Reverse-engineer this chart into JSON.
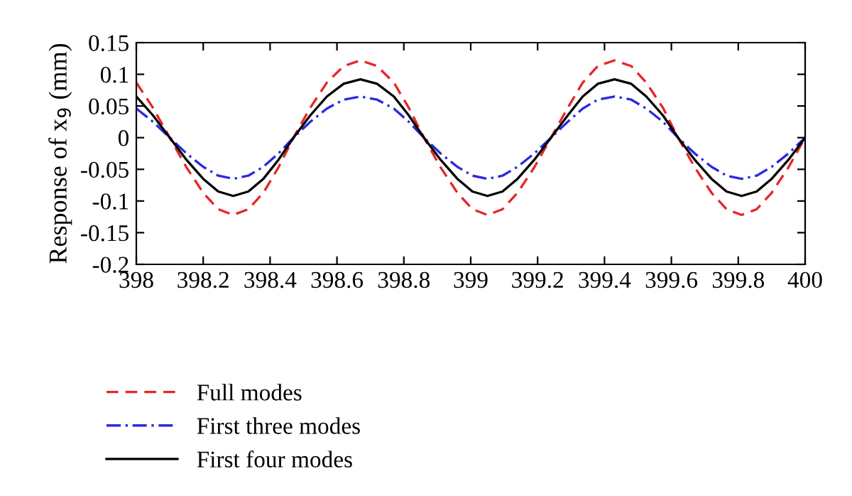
{
  "chart_data": {
    "type": "line",
    "ylabel": "Response of x$_{9}$ (mm)",
    "x": [
      398,
      398.05,
      398.1,
      398.15,
      398.2,
      398.245,
      398.29,
      398.335,
      398.38,
      398.425,
      398.47,
      398.52,
      398.57,
      398.62,
      398.67,
      398.72,
      398.77,
      398.815,
      398.86,
      398.91,
      398.96,
      399.005,
      399.05,
      399.095,
      399.14,
      399.19,
      399.24,
      399.29,
      399.335,
      399.38,
      399.43,
      399.48,
      399.525,
      399.575,
      399.62,
      399.67,
      399.72,
      399.765,
      399.81,
      399.855,
      399.9,
      399.95,
      400
    ],
    "series": [
      {
        "name": "Full modes",
        "color": "#e8262a",
        "line_style": "dashed",
        "values": [
          0.087,
          0.047,
          0,
          -0.047,
          -0.087,
          -0.113,
          -0.122,
          -0.113,
          -0.087,
          -0.047,
          0,
          0.047,
          0.087,
          0.113,
          0.122,
          0.113,
          0.087,
          0.047,
          0,
          -0.047,
          -0.087,
          -0.113,
          -0.122,
          -0.113,
          -0.087,
          -0.047,
          0,
          0.047,
          0.087,
          0.113,
          0.122,
          0.113,
          0.087,
          0.047,
          0,
          -0.047,
          -0.087,
          -0.113,
          -0.122,
          -0.113,
          -0.087,
          -0.047,
          0
        ]
      },
      {
        "name": "First three modes",
        "color": "#2a2ae0",
        "line_style": "dashdot",
        "values": [
          0.046,
          0.025,
          0,
          -0.025,
          -0.046,
          -0.06,
          -0.065,
          -0.06,
          -0.046,
          -0.025,
          0,
          0.025,
          0.046,
          0.06,
          0.065,
          0.06,
          0.046,
          0.025,
          0,
          -0.025,
          -0.046,
          -0.06,
          -0.065,
          -0.06,
          -0.046,
          -0.025,
          0,
          0.025,
          0.046,
          0.06,
          0.065,
          0.06,
          0.046,
          0.025,
          0,
          -0.025,
          -0.046,
          -0.06,
          -0.065,
          -0.06,
          -0.046,
          -0.025,
          0
        ]
      },
      {
        "name": "First four modes",
        "color": "#000000",
        "line_style": "solid",
        "values": [
          0.065,
          0.035,
          0,
          -0.035,
          -0.065,
          -0.085,
          -0.092,
          -0.085,
          -0.065,
          -0.035,
          0,
          0.035,
          0.065,
          0.085,
          0.092,
          0.085,
          0.065,
          0.035,
          0,
          -0.035,
          -0.065,
          -0.085,
          -0.092,
          -0.085,
          -0.065,
          -0.035,
          0,
          0.035,
          0.065,
          0.085,
          0.092,
          0.085,
          0.065,
          0.035,
          0,
          -0.035,
          -0.065,
          -0.085,
          -0.092,
          -0.085,
          -0.065,
          -0.035,
          0
        ]
      }
    ],
    "xlim": [
      398,
      400
    ],
    "xticks": [
      398,
      398.2,
      398.4,
      398.6,
      398.8,
      399,
      399.2,
      399.4,
      399.6,
      399.8,
      400
    ],
    "ylim": [
      -0.2,
      0.15
    ],
    "yticks": [
      -0.2,
      -0.15,
      -0.1,
      -0.05,
      0,
      0.05,
      0.1,
      0.15
    ],
    "grid": false,
    "legend": "bottom",
    "marker": "none"
  }
}
